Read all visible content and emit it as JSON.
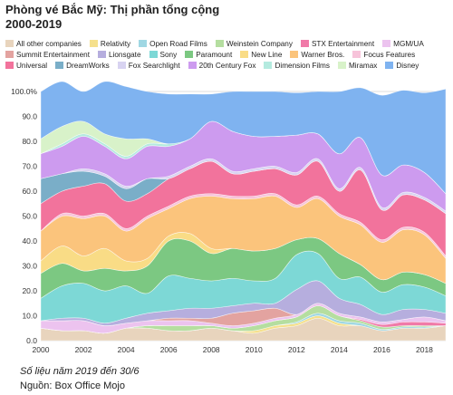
{
  "title_lines": [
    "Phòng vé Bắc Mỹ: Thị phần tổng cộng",
    "2000-2019"
  ],
  "footnote": "Số liệu năm 2019 đến 30/6",
  "source": "Nguồn: Box Office Mojo",
  "legend_rows": [
    [
      "All other companies",
      "Relativity",
      "Open Road Films",
      "Weinstein Company",
      "STX Entertainment",
      "MGM/UA"
    ],
    [
      "Summit Entertainment",
      "Lionsgate",
      "Sony",
      "Paramount",
      "New Line",
      "Warner Bros.",
      "Focus Features"
    ],
    [
      "Universal",
      "DreamWorks",
      "Fox Searchlight",
      "20th Century Fox",
      "Dimension Films",
      "Miramax",
      "Disney"
    ]
  ],
  "chart_data": {
    "type": "area",
    "stacked": true,
    "x": [
      2000,
      2001,
      2002,
      2003,
      2004,
      2005,
      2006,
      2007,
      2008,
      2009,
      2010,
      2011,
      2012,
      2013,
      2014,
      2015,
      2016,
      2017,
      2018,
      2019
    ],
    "xticks": [
      "2000",
      "2002",
      "2004",
      "2006",
      "2008",
      "2010",
      "2012",
      "2014",
      "2016",
      "2018"
    ],
    "yticks": [
      "0.0",
      "10.0",
      "20.0",
      "30.0",
      "40.0",
      "50.0",
      "60.0",
      "70.0",
      "80.0",
      "90.0",
      "100.0%"
    ],
    "ylim": [
      0,
      100
    ],
    "grid": true,
    "legend_position": "top",
    "series": [
      {
        "name": "All other companies",
        "color": "#e8d4bd",
        "values": [
          5,
          4,
          4,
          3,
          5,
          5,
          4,
          4,
          5,
          4,
          3,
          5,
          6,
          9,
          6,
          6,
          4,
          5,
          5,
          6
        ]
      },
      {
        "name": "Relativity",
        "color": "#f5e08c",
        "values": [
          0,
          0,
          0,
          0,
          0,
          0,
          0,
          0,
          0,
          0,
          1,
          1,
          1,
          1,
          1,
          0,
          0,
          0,
          0,
          0
        ]
      },
      {
        "name": "Open Road Films",
        "color": "#9fd7e3",
        "values": [
          0,
          0,
          0,
          0,
          0,
          0,
          0,
          0,
          0,
          0,
          0,
          0,
          0.5,
          1,
          1,
          1,
          0.5,
          0.5,
          0.5,
          0
        ]
      },
      {
        "name": "Weinstein Company",
        "color": "#b5dea0",
        "values": [
          0,
          0,
          0,
          0,
          0,
          1,
          2,
          2,
          1,
          1,
          2,
          2,
          2,
          3,
          2,
          1,
          1,
          0.5,
          0.5,
          0
        ]
      },
      {
        "name": "STX Entertainment",
        "color": "#f07aa8",
        "values": [
          0,
          0,
          0,
          0,
          0,
          0,
          0,
          0,
          0,
          0,
          0,
          0,
          0,
          0,
          0,
          0.5,
          1,
          1.5,
          1.5,
          1
        ]
      },
      {
        "name": "MGM/UA",
        "color": "#ecc3ef",
        "values": [
          3,
          4,
          4,
          3,
          2,
          2,
          2,
          2,
          1,
          1,
          1,
          1,
          1,
          1,
          1,
          1,
          1,
          1,
          2,
          1
        ]
      },
      {
        "name": "Summit Entertainment",
        "color": "#e3a3a0",
        "values": [
          0,
          0,
          0,
          0,
          0,
          0,
          1,
          1,
          2,
          5,
          5,
          4,
          0,
          0,
          0,
          0,
          0,
          0,
          0,
          0
        ]
      },
      {
        "name": "Lionsgate",
        "color": "#b6aede",
        "values": [
          0,
          1,
          1,
          1,
          2,
          3,
          3,
          4,
          4,
          3,
          3,
          2,
          10,
          9,
          6,
          5,
          3,
          4,
          3,
          3
        ]
      },
      {
        "name": "Sony",
        "color": "#7dd8d6",
        "values": [
          9,
          13,
          14,
          13,
          13,
          8,
          14,
          12,
          11,
          11,
          9,
          10,
          14,
          11,
          8,
          11,
          9,
          10,
          9,
          7
        ]
      },
      {
        "name": "Paramount",
        "color": "#7cc882",
        "values": [
          10,
          9,
          5,
          9,
          6,
          11,
          14,
          15,
          11,
          12,
          12,
          12,
          6,
          6,
          10,
          5,
          5,
          5,
          5,
          5
        ]
      },
      {
        "name": "New Line",
        "color": "#f9dc86",
        "values": [
          5,
          7,
          6,
          8,
          4,
          3,
          2,
          3,
          2,
          0,
          0,
          0,
          0,
          0,
          0,
          0,
          0,
          0,
          0,
          0
        ]
      },
      {
        "name": "Warner Bros.",
        "color": "#fbc47c",
        "values": [
          12,
          12,
          15,
          13,
          12,
          16,
          11,
          14,
          21,
          20,
          21,
          21,
          13,
          16,
          15,
          16,
          15,
          17,
          16,
          10
        ]
      },
      {
        "name": "Focus Features",
        "color": "#f7c3da",
        "values": [
          0,
          1,
          1,
          1,
          1,
          1,
          1,
          1,
          1,
          1,
          1,
          1,
          1,
          1,
          1,
          1,
          1,
          1,
          1,
          1
        ]
      },
      {
        "name": "Universal",
        "color": "#f2739c",
        "values": [
          11,
          9,
          12,
          12,
          11,
          9,
          11,
          11,
          13,
          9,
          10,
          10,
          12,
          14,
          9,
          21,
          12,
          13,
          13,
          17
        ]
      },
      {
        "name": "DreamWorks",
        "color": "#7aaec8",
        "values": [
          10,
          7,
          6,
          3,
          5,
          6,
          0,
          0,
          0,
          0,
          0,
          0,
          0,
          0,
          0,
          0,
          0,
          0,
          0,
          0
        ]
      },
      {
        "name": "Fox Searchlight",
        "color": "#d8d3f1",
        "values": [
          0,
          0,
          1,
          1,
          1,
          0,
          1,
          1,
          1,
          1,
          1,
          1,
          1,
          1,
          1,
          1,
          1,
          1,
          1,
          1
        ]
      },
      {
        "name": "20th Century Fox",
        "color": "#cd9bef",
        "values": [
          10,
          11,
          13,
          11,
          11,
          13,
          12,
          11,
          15,
          16,
          13,
          12,
          15,
          10,
          14,
          12,
          13,
          11,
          10,
          7
        ]
      },
      {
        "name": "Dimension Films",
        "color": "#b4eadf",
        "values": [
          0,
          1,
          1,
          1,
          1,
          1,
          1,
          0,
          0,
          0,
          0,
          0,
          0,
          0,
          0,
          0,
          0,
          0,
          0,
          0
        ]
      },
      {
        "name": "Miramax",
        "color": "#d8f2c9",
        "values": [
          6,
          7,
          5,
          4,
          7,
          2,
          0,
          0,
          0,
          0,
          0,
          0,
          0,
          0,
          0,
          0,
          0,
          0,
          0,
          0
        ]
      },
      {
        "name": "Disney",
        "color": "#7fb3f0",
        "values": [
          19,
          18,
          12,
          21,
          21,
          19,
          20,
          18,
          11,
          16,
          18,
          18,
          17,
          17,
          25,
          20,
          32,
          30,
          32,
          42
        ]
      }
    ]
  }
}
